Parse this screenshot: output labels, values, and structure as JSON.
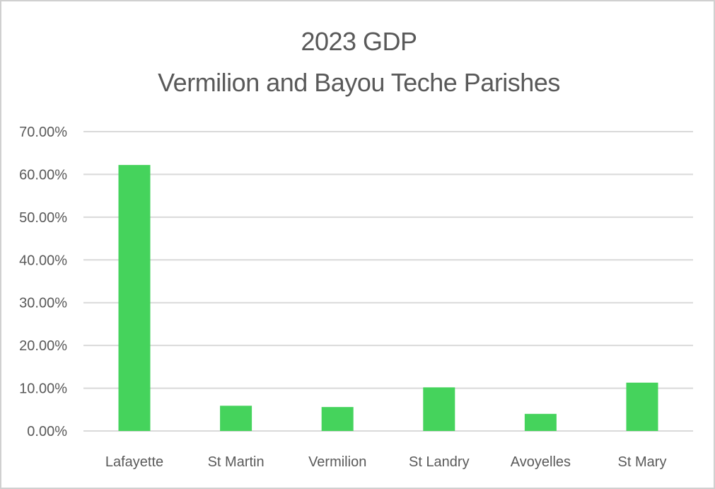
{
  "chart_data": {
    "type": "bar",
    "title_lines": [
      "2023 GDP",
      "Vermilion and Bayou Teche Parishes"
    ],
    "categories": [
      "Lafayette",
      "St Martin",
      "Vermilion",
      "St Landry",
      "Avoyelles",
      "St Mary"
    ],
    "values": [
      62.2,
      5.9,
      5.6,
      10.2,
      4.0,
      11.3
    ],
    "yticks": [
      "0.00%",
      "10.00%",
      "20.00%",
      "30.00%",
      "40.00%",
      "50.00%",
      "60.00%",
      "70.00%"
    ],
    "ylim": [
      0,
      70
    ],
    "xlabel": "",
    "ylabel": "",
    "grid": true,
    "legend": "none",
    "bar_color": "#45d35c",
    "grid_color": "#d9d9d9",
    "text_color": "#595959"
  }
}
